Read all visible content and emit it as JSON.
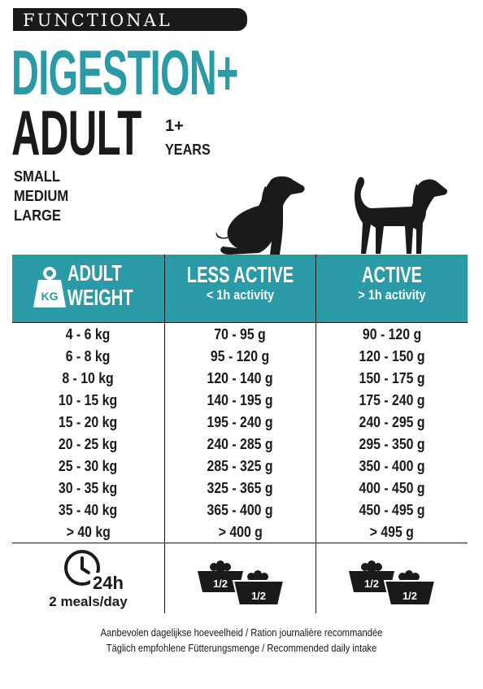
{
  "header": {
    "badge": "FUNCTIONAL",
    "title": "DIGESTION+",
    "subtitle": "ADULT",
    "age_value": "1+",
    "age_unit": "YEARS",
    "sizes": [
      "SMALL",
      "MEDIUM",
      "LARGE"
    ]
  },
  "colors": {
    "accent": "#2a9ba6",
    "text": "#1a1a1a"
  },
  "icons": {
    "dog_sitting": "dog-sitting-icon",
    "dog_standing": "dog-standing-icon",
    "weight": "weight-icon",
    "clock": "clock-icon",
    "bowl": "food-bowl-icon"
  },
  "table": {
    "columns": [
      {
        "title": "ADULT\nWEIGHT",
        "weight_badge": "KG",
        "subtitle": ""
      },
      {
        "title": "LESS ACTIVE",
        "subtitle": "< 1h activity"
      },
      {
        "title": "ACTIVE",
        "subtitle": "> 1h activity"
      }
    ],
    "rows": [
      [
        "4 - 6 kg",
        "70 - 95 g",
        "90 - 120 g"
      ],
      [
        "6 - 8 kg",
        "95 - 120 g",
        "120 - 150 g"
      ],
      [
        "8 - 10 kg",
        "120 - 140 g",
        "150 - 175 g"
      ],
      [
        "10 - 15 kg",
        "140 - 195 g",
        "175 - 240 g"
      ],
      [
        "15 - 20 kg",
        "195 - 240 g",
        "240 - 295 g"
      ],
      [
        "20 - 25 kg",
        "240 - 285 g",
        "295 - 350 g"
      ],
      [
        "25 - 30 kg",
        "285 - 325 g",
        "350 - 400 g"
      ],
      [
        "30 - 35 kg",
        "325 - 365 g",
        "400 - 450 g"
      ],
      [
        "35 - 40 kg",
        "365 - 400 g",
        "450 - 495 g"
      ],
      [
        "> 40 kg",
        "> 400 g",
        "> 495 g"
      ]
    ],
    "footer": {
      "clock_label": "24h",
      "meals": "2 meals/day",
      "bowl_label": "1/2"
    }
  },
  "note": {
    "line1": "Aanbevolen dagelijkse hoeveelheid / Ration journalière recommandée",
    "line2": "Täglich empfohlene Fütterungsmenge / Recommended daily intake"
  }
}
